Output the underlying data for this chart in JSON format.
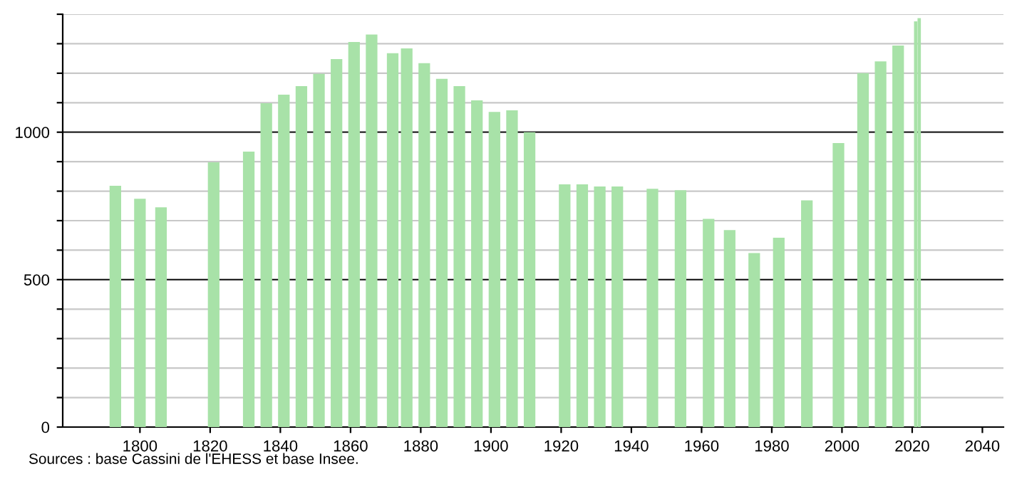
{
  "chart_data": {
    "type": "bar",
    "x": [
      1793,
      1800,
      1806,
      1821,
      1831,
      1836,
      1841,
      1846,
      1851,
      1856,
      1861,
      1866,
      1872,
      1876,
      1881,
      1886,
      1891,
      1896,
      1901,
      1906,
      1911,
      1921,
      1926,
      1931,
      1936,
      1946,
      1954,
      1962,
      1968,
      1975,
      1982,
      1990,
      1999,
      2006,
      2011,
      2016,
      2021,
      2022
    ],
    "values": [
      818,
      774,
      745,
      898,
      934,
      1098,
      1127,
      1156,
      1198,
      1248,
      1306,
      1331,
      1268,
      1284,
      1234,
      1181,
      1156,
      1108,
      1069,
      1074,
      1000,
      823,
      823,
      816,
      816,
      808,
      803,
      706,
      668,
      590,
      642,
      769,
      963,
      1200,
      1240,
      1294,
      1376,
      1387
    ],
    "color": "#a8e2a8",
    "xlim": [
      1778,
      2046
    ],
    "xticks": [
      1800,
      1820,
      1840,
      1860,
      1880,
      1900,
      1920,
      1940,
      1960,
      1980,
      2000,
      2020,
      2040
    ],
    "ylim": [
      0,
      1400
    ],
    "yticks": [
      0,
      {
        "value": 100,
        "label": null
      },
      {
        "value": 200,
        "label": null
      },
      {
        "value": 300,
        "label": null
      },
      {
        "value": 400,
        "label": null
      },
      500,
      {
        "value": 600,
        "label": null
      },
      {
        "value": 700,
        "label": null
      },
      {
        "value": 800,
        "label": null
      },
      {
        "value": 900,
        "label": null
      },
      1000,
      {
        "value": 1100,
        "label": null
      },
      {
        "value": 1200,
        "label": null
      },
      {
        "value": 1300,
        "label": null
      },
      {
        "value": 1400,
        "label": null
      }
    ],
    "grid": "y",
    "annotations": [
      "Sources : base Cassini de l'EHESS et base Insee."
    ]
  }
}
